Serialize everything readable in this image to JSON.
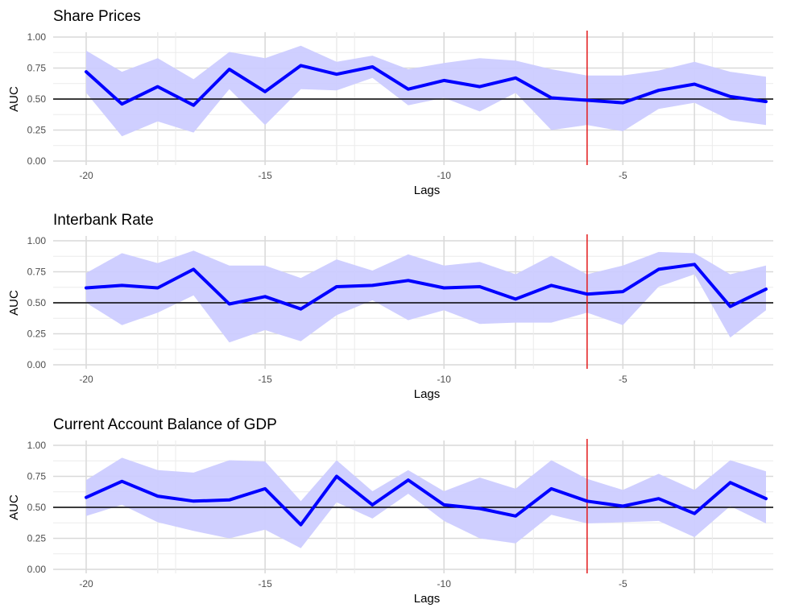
{
  "colors": {
    "line": "#0000ff",
    "band": "#ccccff",
    "reference_line": "#000000",
    "marker_line": "#e31a1c",
    "grid": "#d9d9d9",
    "background": "#ffffff"
  },
  "chart_data": [
    {
      "type": "line",
      "title": "Share Prices",
      "xlabel": "Lags",
      "ylabel": "AUC",
      "xlim": [
        -20,
        -1
      ],
      "ylim": [
        0,
        1
      ],
      "x_ticks": [
        -20,
        -15,
        -10,
        -5
      ],
      "x_tick_labels": [
        "-20",
        "-15",
        "-10",
        "-5"
      ],
      "y_ticks": [
        0,
        0.25,
        0.5,
        0.75,
        1
      ],
      "y_tick_labels": [
        "0.00",
        "0.25",
        "0.50",
        "0.75",
        "1.00"
      ],
      "hline": 0.5,
      "vline": -6,
      "grid": true,
      "x": [
        -20,
        -19,
        -18,
        -17,
        -16,
        -15,
        -14,
        -13,
        -12,
        -11,
        -10,
        -9,
        -8,
        -7,
        -6,
        -5,
        -4,
        -3,
        -2,
        -1
      ],
      "series": [
        {
          "values": [
            0.72,
            0.46,
            0.6,
            0.45,
            0.74,
            0.56,
            0.77,
            0.7,
            0.76,
            0.58,
            0.65,
            0.6,
            0.67,
            0.51,
            0.49,
            0.47,
            0.57,
            0.62,
            0.52,
            0.48
          ],
          "lower": [
            0.55,
            0.2,
            0.32,
            0.23,
            0.58,
            0.29,
            0.58,
            0.57,
            0.67,
            0.45,
            0.51,
            0.4,
            0.55,
            0.25,
            0.29,
            0.24,
            0.42,
            0.47,
            0.33,
            0.29
          ],
          "upper": [
            0.89,
            0.72,
            0.83,
            0.66,
            0.88,
            0.83,
            0.93,
            0.8,
            0.85,
            0.74,
            0.79,
            0.83,
            0.81,
            0.74,
            0.69,
            0.69,
            0.73,
            0.8,
            0.72,
            0.68
          ]
        }
      ]
    },
    {
      "type": "line",
      "title": "Interbank Rate",
      "xlabel": "Lags",
      "ylabel": "AUC",
      "xlim": [
        -20,
        -1
      ],
      "ylim": [
        0,
        1
      ],
      "x_ticks": [
        -20,
        -15,
        -10,
        -5
      ],
      "x_tick_labels": [
        "-20",
        "-15",
        "-10",
        "-5"
      ],
      "y_ticks": [
        0,
        0.25,
        0.5,
        0.75,
        1
      ],
      "y_tick_labels": [
        "0.00",
        "0.25",
        "0.50",
        "0.75",
        "1.00"
      ],
      "hline": 0.5,
      "vline": -6,
      "grid": true,
      "x": [
        -20,
        -19,
        -18,
        -17,
        -16,
        -15,
        -14,
        -13,
        -12,
        -11,
        -10,
        -9,
        -8,
        -7,
        -6,
        -5,
        -4,
        -3,
        -2,
        -1
      ],
      "series": [
        {
          "values": [
            0.62,
            0.64,
            0.62,
            0.77,
            0.49,
            0.55,
            0.45,
            0.63,
            0.64,
            0.68,
            0.62,
            0.63,
            0.53,
            0.64,
            0.57,
            0.59,
            0.77,
            0.81,
            0.47,
            0.61
          ],
          "lower": [
            0.5,
            0.32,
            0.42,
            0.56,
            0.18,
            0.28,
            0.19,
            0.4,
            0.52,
            0.36,
            0.44,
            0.33,
            0.34,
            0.34,
            0.42,
            0.32,
            0.63,
            0.73,
            0.22,
            0.44
          ],
          "upper": [
            0.74,
            0.9,
            0.82,
            0.92,
            0.8,
            0.8,
            0.7,
            0.85,
            0.76,
            0.89,
            0.8,
            0.83,
            0.73,
            0.88,
            0.73,
            0.8,
            0.91,
            0.9,
            0.73,
            0.8
          ]
        }
      ]
    },
    {
      "type": "line",
      "title": "Current Account Balance of GDP",
      "xlabel": "Lags",
      "ylabel": "AUC",
      "xlim": [
        -20,
        -1
      ],
      "ylim": [
        0,
        1
      ],
      "x_ticks": [
        -20,
        -15,
        -10,
        -5
      ],
      "x_tick_labels": [
        "-20",
        "-15",
        "-10",
        "-5"
      ],
      "y_ticks": [
        0,
        0.25,
        0.5,
        0.75,
        1
      ],
      "y_tick_labels": [
        "0.00",
        "0.25",
        "0.50",
        "0.75",
        "1.00"
      ],
      "hline": 0.5,
      "vline": -6,
      "grid": true,
      "x": [
        -20,
        -19,
        -18,
        -17,
        -16,
        -15,
        -14,
        -13,
        -12,
        -11,
        -10,
        -9,
        -8,
        -7,
        -6,
        -5,
        -4,
        -3,
        -2,
        -1
      ],
      "series": [
        {
          "values": [
            0.58,
            0.71,
            0.59,
            0.55,
            0.56,
            0.65,
            0.36,
            0.75,
            0.52,
            0.72,
            0.52,
            0.49,
            0.43,
            0.65,
            0.55,
            0.51,
            0.57,
            0.45,
            0.7,
            0.57
          ],
          "lower": [
            0.43,
            0.52,
            0.38,
            0.31,
            0.25,
            0.32,
            0.17,
            0.54,
            0.41,
            0.61,
            0.39,
            0.25,
            0.21,
            0.44,
            0.37,
            0.38,
            0.39,
            0.26,
            0.51,
            0.37
          ],
          "upper": [
            0.72,
            0.9,
            0.8,
            0.78,
            0.88,
            0.87,
            0.55,
            0.88,
            0.63,
            0.8,
            0.63,
            0.74,
            0.65,
            0.88,
            0.73,
            0.64,
            0.77,
            0.64,
            0.88,
            0.79
          ]
        }
      ]
    }
  ]
}
